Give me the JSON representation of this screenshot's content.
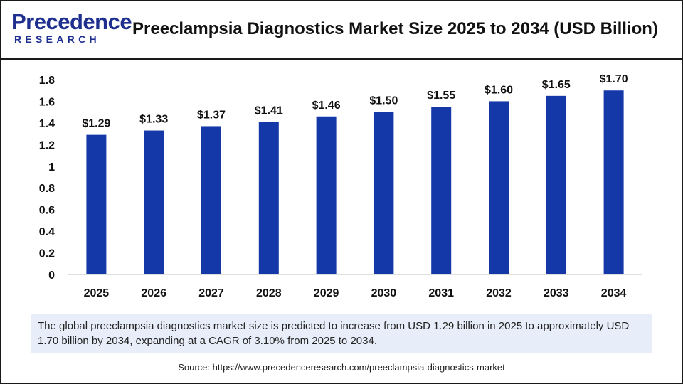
{
  "brand": {
    "logo_top": "Precedence",
    "logo_bottom": "RESEARCH"
  },
  "title": "Preeclampsia Diagnostics Market Size 2025 to 2034 (USD Billion)",
  "chart_data": {
    "type": "bar",
    "title": "Preeclampsia Diagnostics Market Size 2025 to 2034 (USD Billion)",
    "xlabel": "",
    "ylabel": "",
    "categories": [
      "2025",
      "2026",
      "2027",
      "2028",
      "2029",
      "2030",
      "2031",
      "2032",
      "2033",
      "2034"
    ],
    "values": [
      1.29,
      1.33,
      1.37,
      1.41,
      1.46,
      1.5,
      1.55,
      1.6,
      1.65,
      1.7
    ],
    "data_labels": [
      "$1.29",
      "$1.33",
      "$1.37",
      "$1.41",
      "$1.46",
      "$1.50",
      "$1.55",
      "$1.60",
      "$1.65",
      "$1.70"
    ],
    "y_ticks": [
      "0",
      "0.2",
      "0.4",
      "0.6",
      "0.8",
      "1",
      "1.2",
      "1.4",
      "1.6",
      "1.8"
    ],
    "ylim": [
      0,
      1.8
    ],
    "grid": false,
    "legend": "none",
    "bar_color": "#1438a8"
  },
  "note": "The global preeclampsia diagnostics market size is predicted to increase from USD 1.29 billion in 2025 to approximately USD 1.70 billion by 2034, expanding at a CAGR of 3.10% from 2025 to 2034.",
  "source": "Source: https://www.precedenceresearch.com/preeclampsia-diagnostics-market"
}
